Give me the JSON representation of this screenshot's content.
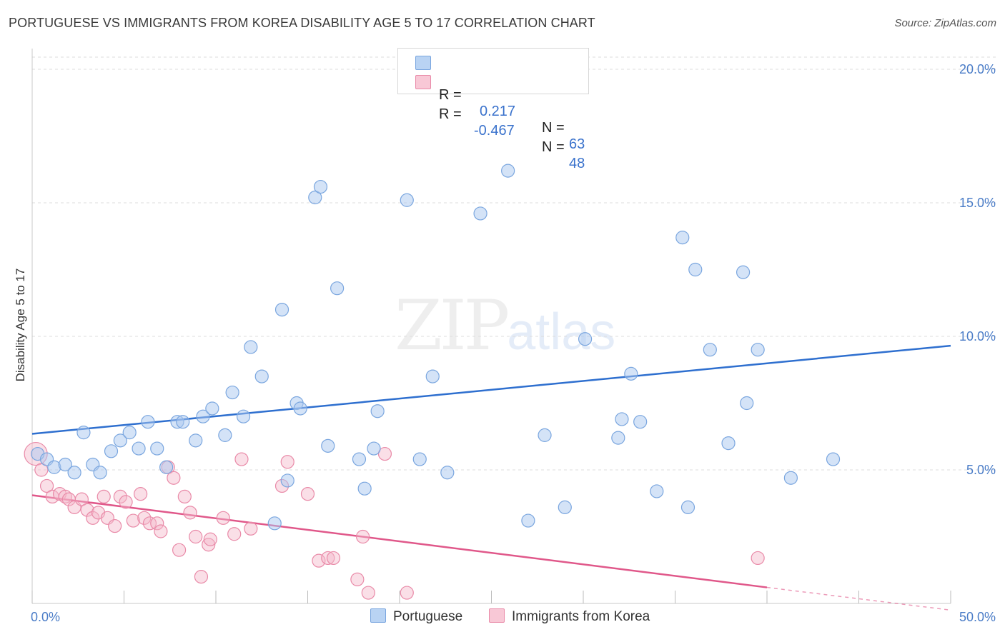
{
  "header": {
    "title": "PORTUGUESE VS IMMIGRANTS FROM KOREA DISABILITY AGE 5 TO 17 CORRELATION CHART",
    "source": "Source: ZipAtlas.com"
  },
  "legend": {
    "rows": [
      {
        "r_label": "R =",
        "r_value": "0.217",
        "n_label": "N =",
        "n_value": "63"
      },
      {
        "r_label": "R =",
        "r_value": "-0.467",
        "n_label": "N =",
        "n_value": "48"
      }
    ],
    "series_labels": [
      "Portuguese",
      "Immigrants from Korea"
    ]
  },
  "watermark": {
    "zip": "ZIP",
    "atlas": "atlas"
  },
  "colors": {
    "blue_fill": "#a9c8ef",
    "blue_stroke": "#7aa6df",
    "blue_line": "#2e6fcf",
    "pink_fill": "#f5b8ca",
    "pink_stroke": "#e98aa8",
    "pink_line": "#e0588a",
    "tick_text": "#4a7cc7",
    "grid": "#dddddd"
  },
  "chart_data": {
    "type": "scatter",
    "title": "PORTUGUESE VS IMMIGRANTS FROM KOREA DISABILITY AGE 5 TO 17 CORRELATION CHART",
    "xlabel": "",
    "ylabel": "Disability Age 5 to 17",
    "xlim": [
      0,
      50
    ],
    "ylim": [
      0,
      20
    ],
    "x_tick_labels": [
      "0.0%",
      "50.0%"
    ],
    "y_ticks": [
      5,
      10,
      15,
      20
    ],
    "y_tick_labels": [
      "5.0%",
      "10.0%",
      "15.0%",
      "20.0%"
    ],
    "grid": true,
    "legend_position": "top-center",
    "series": [
      {
        "name": "Portuguese",
        "r": 0.217,
        "n": 63,
        "trend": {
          "x": [
            0,
            50
          ],
          "y": [
            6.35,
            9.65
          ]
        },
        "points": [
          [
            0.3,
            5.6
          ],
          [
            0.8,
            5.4
          ],
          [
            1.2,
            5.1
          ],
          [
            1.8,
            5.2
          ],
          [
            2.3,
            4.9
          ],
          [
            2.8,
            6.4
          ],
          [
            3.3,
            5.2
          ],
          [
            3.7,
            4.9
          ],
          [
            4.3,
            5.7
          ],
          [
            4.8,
            6.1
          ],
          [
            5.3,
            6.4
          ],
          [
            5.8,
            5.8
          ],
          [
            6.3,
            6.8
          ],
          [
            6.8,
            5.8
          ],
          [
            7.3,
            5.1
          ],
          [
            7.9,
            6.8
          ],
          [
            8.2,
            6.8
          ],
          [
            8.9,
            6.1
          ],
          [
            9.3,
            7.0
          ],
          [
            9.8,
            7.3
          ],
          [
            10.5,
            6.3
          ],
          [
            10.9,
            7.9
          ],
          [
            11.5,
            7.0
          ],
          [
            11.9,
            9.6
          ],
          [
            12.5,
            8.5
          ],
          [
            13.2,
            3.0
          ],
          [
            13.6,
            11.0
          ],
          [
            13.9,
            4.6
          ],
          [
            14.4,
            7.5
          ],
          [
            14.6,
            7.3
          ],
          [
            15.4,
            15.2
          ],
          [
            15.7,
            15.6
          ],
          [
            16.1,
            5.9
          ],
          [
            16.6,
            11.8
          ],
          [
            17.8,
            5.4
          ],
          [
            18.1,
            4.3
          ],
          [
            18.6,
            5.8
          ],
          [
            18.8,
            7.2
          ],
          [
            20.4,
            15.1
          ],
          [
            21.1,
            5.4
          ],
          [
            21.8,
            8.5
          ],
          [
            22.6,
            4.9
          ],
          [
            24.4,
            14.6
          ],
          [
            25.9,
            16.2
          ],
          [
            27.0,
            3.1
          ],
          [
            27.9,
            6.3
          ],
          [
            29.0,
            3.6
          ],
          [
            30.1,
            9.9
          ],
          [
            31.9,
            6.2
          ],
          [
            32.1,
            6.9
          ],
          [
            32.6,
            8.6
          ],
          [
            33.1,
            6.8
          ],
          [
            34.0,
            4.2
          ],
          [
            35.4,
            13.7
          ],
          [
            35.7,
            3.6
          ],
          [
            36.1,
            12.5
          ],
          [
            36.9,
            9.5
          ],
          [
            37.9,
            6.0
          ],
          [
            38.7,
            12.4
          ],
          [
            38.9,
            7.5
          ],
          [
            39.5,
            9.5
          ],
          [
            41.3,
            4.7
          ],
          [
            43.6,
            5.4
          ]
        ]
      },
      {
        "name": "Immigrants from Korea",
        "r": -0.467,
        "n": 48,
        "trend": {
          "x": [
            0,
            40
          ],
          "y": [
            4.05,
            0.6
          ],
          "dashed_to": {
            "x": 50,
            "y": -0.25
          }
        },
        "points": [
          [
            0.2,
            5.6
          ],
          [
            0.5,
            5.0
          ],
          [
            0.8,
            4.4
          ],
          [
            1.1,
            4.0
          ],
          [
            1.5,
            4.1
          ],
          [
            1.8,
            4.0
          ],
          [
            2.0,
            3.9
          ],
          [
            2.3,
            3.6
          ],
          [
            2.7,
            3.9
          ],
          [
            3.0,
            3.5
          ],
          [
            3.3,
            3.2
          ],
          [
            3.6,
            3.4
          ],
          [
            3.9,
            4.0
          ],
          [
            4.1,
            3.2
          ],
          [
            4.5,
            2.9
          ],
          [
            4.8,
            4.0
          ],
          [
            5.1,
            3.8
          ],
          [
            5.5,
            3.1
          ],
          [
            5.9,
            4.1
          ],
          [
            6.1,
            3.2
          ],
          [
            6.4,
            3.0
          ],
          [
            6.8,
            3.0
          ],
          [
            7.0,
            2.7
          ],
          [
            7.4,
            5.1
          ],
          [
            7.7,
            4.7
          ],
          [
            8.0,
            2.0
          ],
          [
            8.3,
            4.0
          ],
          [
            8.6,
            3.4
          ],
          [
            8.9,
            2.5
          ],
          [
            9.2,
            1.0
          ],
          [
            9.6,
            2.2
          ],
          [
            9.7,
            2.4
          ],
          [
            10.4,
            3.2
          ],
          [
            11.0,
            2.6
          ],
          [
            11.4,
            5.4
          ],
          [
            11.9,
            2.8
          ],
          [
            13.6,
            4.4
          ],
          [
            13.9,
            5.3
          ],
          [
            15.0,
            4.1
          ],
          [
            15.6,
            1.6
          ],
          [
            16.1,
            1.7
          ],
          [
            16.4,
            1.7
          ],
          [
            17.7,
            0.9
          ],
          [
            18.0,
            2.5
          ],
          [
            18.3,
            0.4
          ],
          [
            19.2,
            5.6
          ],
          [
            20.4,
            0.4
          ],
          [
            39.5,
            1.7
          ]
        ]
      }
    ]
  }
}
